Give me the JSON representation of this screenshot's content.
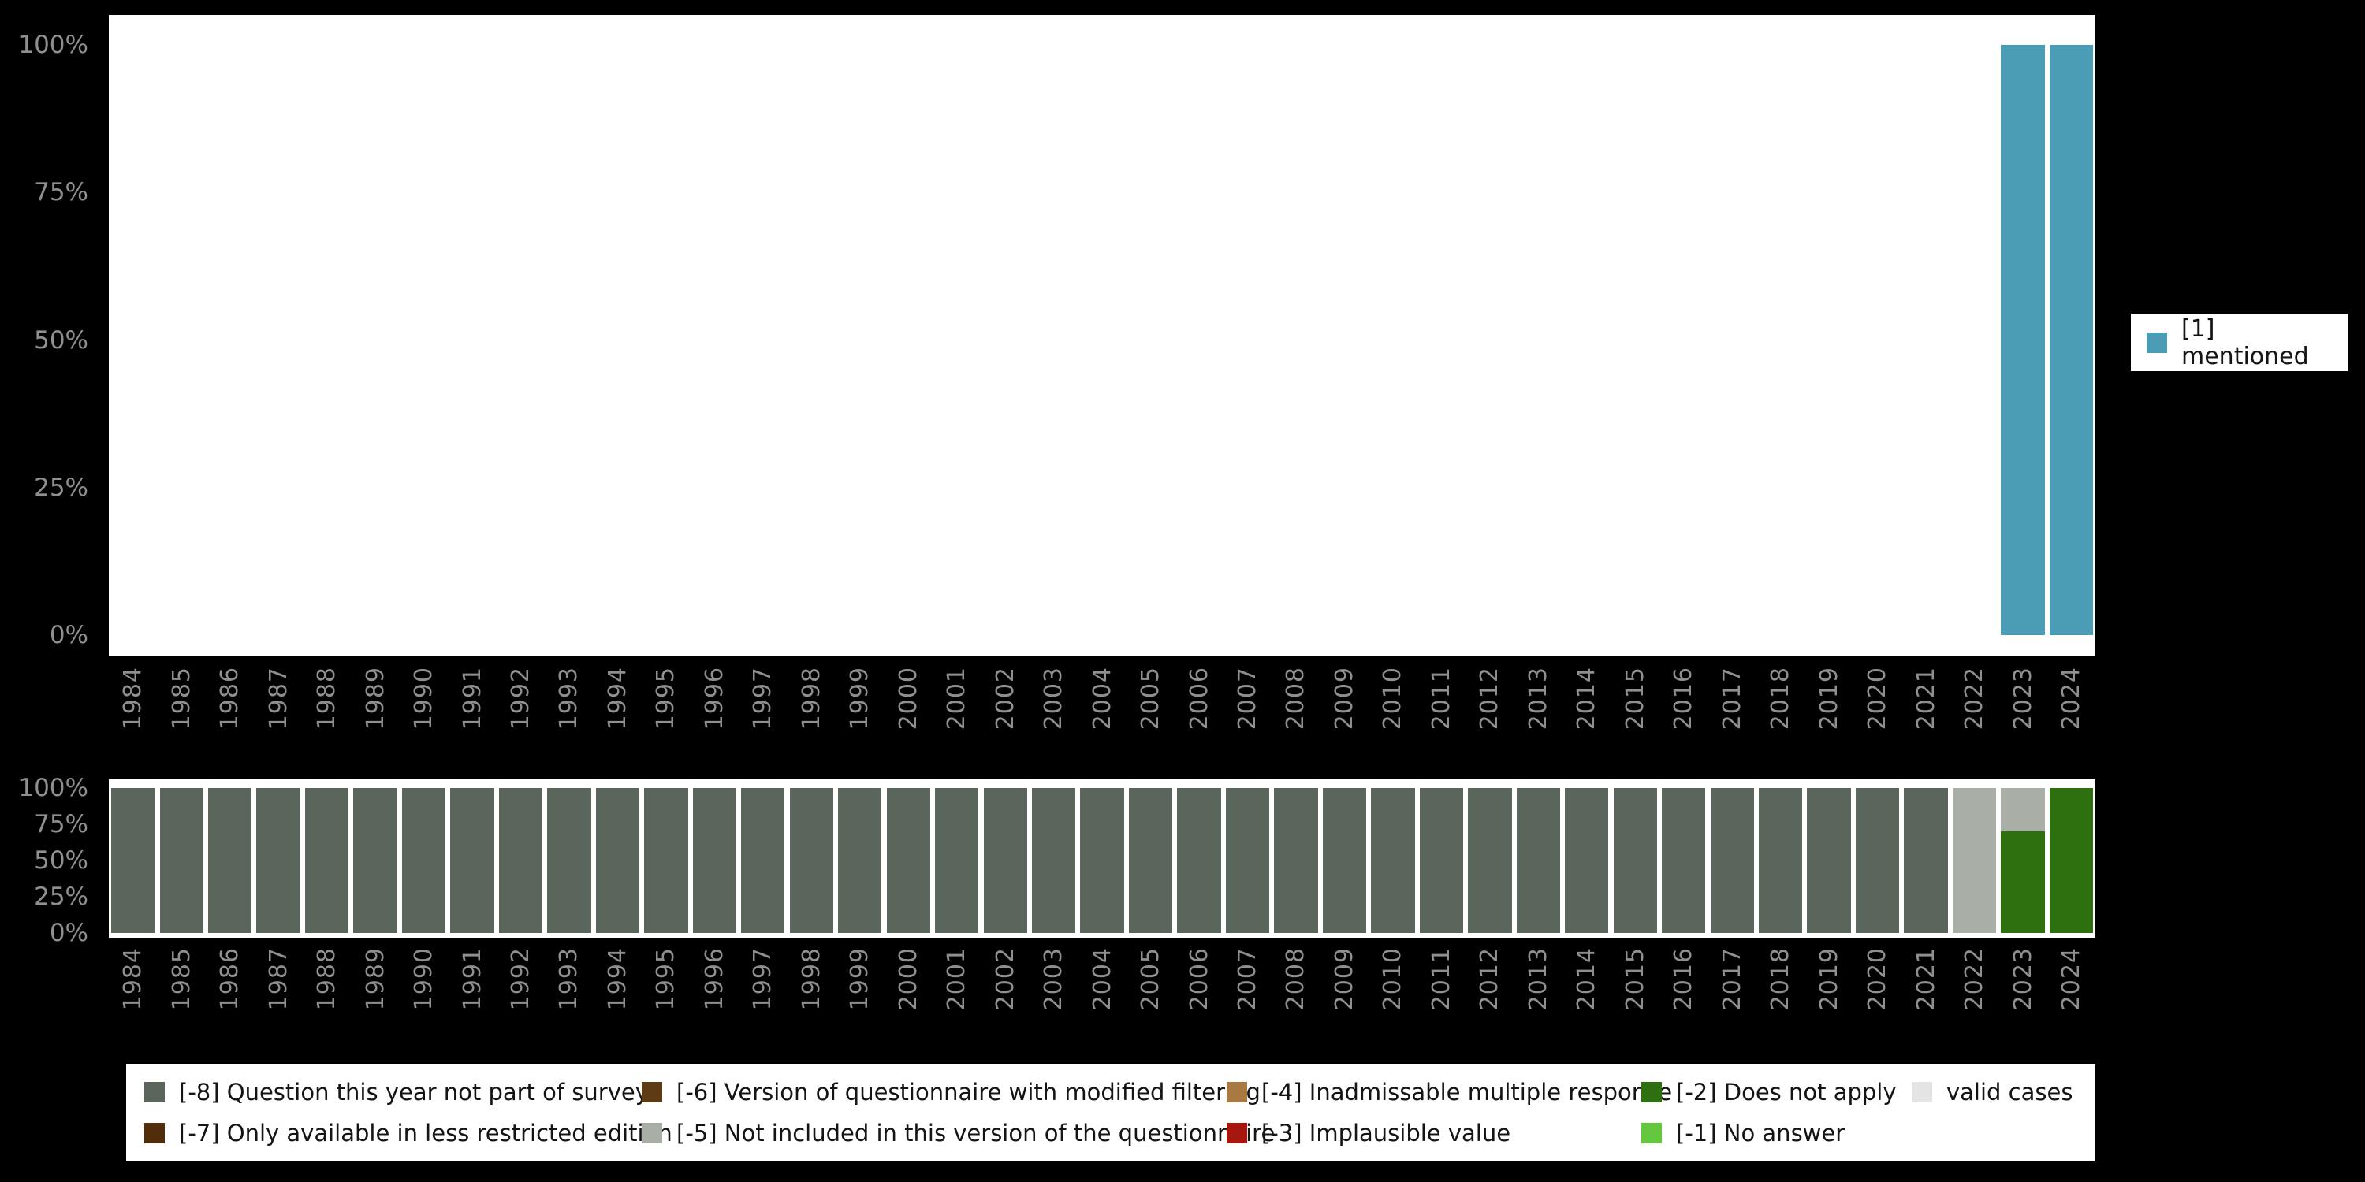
{
  "colors": {
    "background": "#000000",
    "panel_bg": "#ffffff",
    "axis_text": "#8f8f8f",
    "legend_text": "#141414",
    "codes": {
      "1": "#4a9db5",
      "-8": "#5a655c",
      "-7": "#512d0c",
      "-6": "#5f3b15",
      "-5": "#a9aea6",
      "-4": "#a87a42",
      "-3": "#a81610",
      "-2": "#2e6f10",
      "-1": "#64c83e",
      "valid": "#e4e4e4"
    }
  },
  "chart_data": [
    {
      "type": "bar",
      "x": [
        "1984",
        "1985",
        "1986",
        "1987",
        "1988",
        "1989",
        "1990",
        "1991",
        "1992",
        "1993",
        "1994",
        "1995",
        "1996",
        "1997",
        "1998",
        "1999",
        "2000",
        "2001",
        "2002",
        "2003",
        "2004",
        "2005",
        "2006",
        "2007",
        "2008",
        "2009",
        "2010",
        "2011",
        "2012",
        "2013",
        "2014",
        "2015",
        "2016",
        "2017",
        "2018",
        "2019",
        "2020",
        "2021",
        "2022",
        "2023",
        "2024"
      ],
      "ylim": [
        0,
        100
      ],
      "yticks": [
        {
          "value": 100,
          "label": "100%"
        },
        {
          "value": 75,
          "label": "75%"
        },
        {
          "value": 50,
          "label": "50%"
        },
        {
          "value": 25,
          "label": "25%"
        },
        {
          "value": 0,
          "label": "0%"
        }
      ],
      "legend_position": "right",
      "series": [
        {
          "name": "[1] mentioned",
          "code": "1",
          "values": {
            "2023": 100,
            "2024": 100
          }
        }
      ]
    },
    {
      "type": "stacked-bar",
      "x": [
        "1984",
        "1985",
        "1986",
        "1987",
        "1988",
        "1989",
        "1990",
        "1991",
        "1992",
        "1993",
        "1994",
        "1995",
        "1996",
        "1997",
        "1998",
        "1999",
        "2000",
        "2001",
        "2002",
        "2003",
        "2004",
        "2005",
        "2006",
        "2007",
        "2008",
        "2009",
        "2010",
        "2011",
        "2012",
        "2013",
        "2014",
        "2015",
        "2016",
        "2017",
        "2018",
        "2019",
        "2020",
        "2021",
        "2022",
        "2023",
        "2024"
      ],
      "ylim": [
        0,
        100
      ],
      "yticks": [
        {
          "value": 100,
          "label": "100%"
        },
        {
          "value": 75,
          "label": "75%"
        },
        {
          "value": 50,
          "label": "50%"
        },
        {
          "value": 25,
          "label": "25%"
        },
        {
          "value": 0,
          "label": "0%"
        }
      ],
      "bars": {
        "1984": [
          [
            "-8",
            100
          ]
        ],
        "1985": [
          [
            "-8",
            100
          ]
        ],
        "1986": [
          [
            "-8",
            100
          ]
        ],
        "1987": [
          [
            "-8",
            100
          ]
        ],
        "1988": [
          [
            "-8",
            100
          ]
        ],
        "1989": [
          [
            "-8",
            100
          ]
        ],
        "1990": [
          [
            "-8",
            100
          ]
        ],
        "1991": [
          [
            "-8",
            100
          ]
        ],
        "1992": [
          [
            "-8",
            100
          ]
        ],
        "1993": [
          [
            "-8",
            100
          ]
        ],
        "1994": [
          [
            "-8",
            100
          ]
        ],
        "1995": [
          [
            "-8",
            100
          ]
        ],
        "1996": [
          [
            "-8",
            100
          ]
        ],
        "1997": [
          [
            "-8",
            100
          ]
        ],
        "1998": [
          [
            "-8",
            100
          ]
        ],
        "1999": [
          [
            "-8",
            100
          ]
        ],
        "2000": [
          [
            "-8",
            100
          ]
        ],
        "2001": [
          [
            "-8",
            100
          ]
        ],
        "2002": [
          [
            "-8",
            100
          ]
        ],
        "2003": [
          [
            "-8",
            100
          ]
        ],
        "2004": [
          [
            "-8",
            100
          ]
        ],
        "2005": [
          [
            "-8",
            100
          ]
        ],
        "2006": [
          [
            "-8",
            100
          ]
        ],
        "2007": [
          [
            "-8",
            100
          ]
        ],
        "2008": [
          [
            "-8",
            100
          ]
        ],
        "2009": [
          [
            "-8",
            100
          ]
        ],
        "2010": [
          [
            "-8",
            100
          ]
        ],
        "2011": [
          [
            "-8",
            100
          ]
        ],
        "2012": [
          [
            "-8",
            100
          ]
        ],
        "2013": [
          [
            "-8",
            100
          ]
        ],
        "2014": [
          [
            "-8",
            100
          ]
        ],
        "2015": [
          [
            "-8",
            100
          ]
        ],
        "2016": [
          [
            "-8",
            100
          ]
        ],
        "2017": [
          [
            "-8",
            100
          ]
        ],
        "2018": [
          [
            "-8",
            100
          ]
        ],
        "2019": [
          [
            "-8",
            100
          ]
        ],
        "2020": [
          [
            "-8",
            100
          ]
        ],
        "2021": [
          [
            "-8",
            100
          ]
        ],
        "2022": [
          [
            "-5",
            100
          ]
        ],
        "2023": [
          [
            "-2",
            70
          ],
          [
            "-5",
            30
          ]
        ],
        "2024": [
          [
            "-2",
            100
          ]
        ]
      }
    }
  ],
  "legend_right": {
    "items": [
      {
        "code": "1",
        "label": "[1] mentioned"
      }
    ]
  },
  "legend_bottom": {
    "rows": [
      [
        {
          "code": "-8",
          "label": "[-8] Question this year not part of survey"
        },
        {
          "code": "-6",
          "label": "[-6] Version of questionnaire with modified filtering"
        },
        {
          "code": "-4",
          "label": "[-4] Inadmissable multiple response"
        },
        {
          "code": "-2",
          "label": "[-2] Does not apply"
        },
        {
          "code": "valid",
          "label": "valid cases"
        }
      ],
      [
        {
          "code": "-7",
          "label": "[-7] Only available in less restricted edition"
        },
        {
          "code": "-5",
          "label": "[-5] Not included in this version of the questionnaire"
        },
        {
          "code": "-3",
          "label": "[-3] Implausible value"
        },
        {
          "code": "-1",
          "label": "[-1] No answer"
        }
      ]
    ]
  }
}
